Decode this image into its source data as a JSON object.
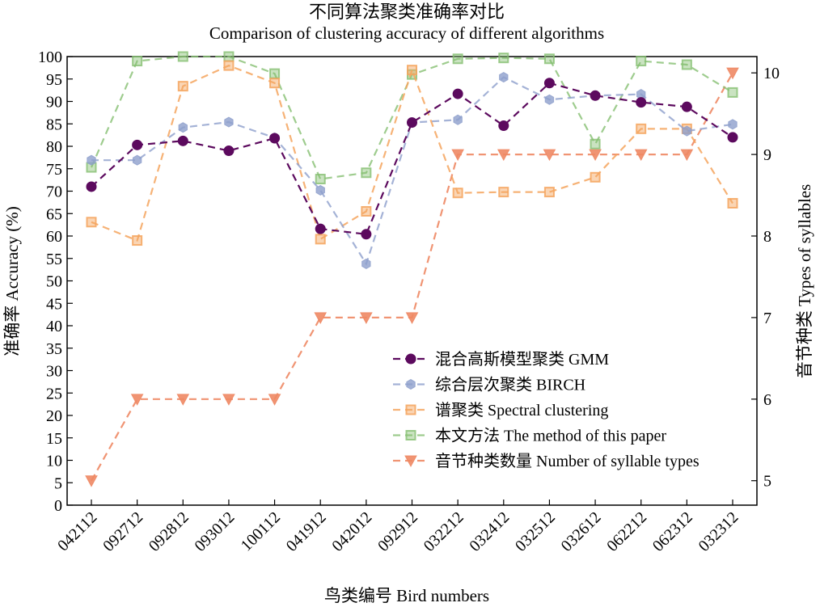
{
  "chart_data": {
    "type": "line",
    "title": "不同算法聚类准确率对比",
    "subtitle": "Comparison of clustering accuracy of different algorithms",
    "xlabel": "鸟类编号 Bird numbers",
    "ylabel_left": "准确率 Accuracy (%)",
    "ylabel_right": "音节种类 Types of syllables",
    "categories": [
      "042112",
      "092712",
      "092812",
      "093012",
      "100112",
      "041912",
      "042012",
      "092912",
      "032212",
      "032412",
      "032512",
      "032612",
      "062212",
      "062312",
      "032312"
    ],
    "ylim_left": [
      0,
      100
    ],
    "yticks_left": [
      0,
      5,
      10,
      15,
      20,
      25,
      30,
      35,
      40,
      45,
      50,
      55,
      60,
      65,
      70,
      75,
      80,
      85,
      90,
      95,
      100
    ],
    "ylim_right": [
      4.7,
      10.2
    ],
    "yticks_right": [
      5,
      6,
      7,
      8,
      9,
      10
    ],
    "grid": false,
    "legend_position": "lower-right",
    "series": [
      {
        "name": "混合高斯模型聚类 GMM",
        "axis": "left",
        "marker": "circle",
        "color": "#5c0a5e",
        "opacity": 1.0,
        "values": [
          71,
          80.3,
          81.2,
          79,
          81.8,
          61.6,
          60.4,
          85.3,
          91.7,
          84.6,
          94.1,
          91.3,
          89.8,
          88.8,
          82
        ]
      },
      {
        "name": "综合层次聚类 BIRCH",
        "axis": "left",
        "marker": "hexagon",
        "color": "#8d9fcc",
        "opacity": 0.8,
        "values": [
          76.9,
          76.9,
          84.2,
          85.4,
          81.9,
          70.2,
          53.8,
          85.3,
          85.9,
          95.4,
          90.4,
          91.3,
          91.6,
          83.4,
          84.9
        ]
      },
      {
        "name": "谱聚类 Spectral clustering",
        "axis": "left",
        "marker": "square",
        "color": "#f4a55e",
        "opacity": 0.85,
        "values": [
          63.1,
          59,
          93.4,
          98,
          94.1,
          59.3,
          65.5,
          97,
          69.6,
          69.8,
          69.8,
          73.1,
          83.9,
          83.9,
          67.3
        ]
      },
      {
        "name": "本文方法 The method of this paper",
        "axis": "left",
        "marker": "square",
        "color": "#86bf72",
        "opacity": 0.8,
        "values": [
          75.3,
          99,
          100,
          100,
          96.2,
          72.7,
          74.1,
          96,
          99.5,
          99.7,
          99.5,
          80.5,
          99,
          98.2,
          92
        ]
      },
      {
        "name": "音节种类数量 Number of syllable types",
        "axis": "right",
        "marker": "triangle-down",
        "color": "#ee8864",
        "opacity": 0.9,
        "values": [
          5,
          6,
          6,
          6,
          6,
          7,
          7,
          7,
          9,
          9,
          9,
          9,
          9,
          9,
          10
        ]
      }
    ]
  }
}
